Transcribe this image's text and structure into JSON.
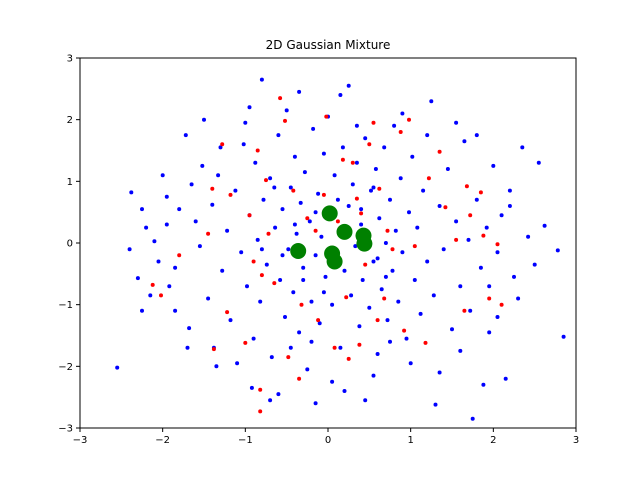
{
  "chart_data": {
    "type": "scatter",
    "title": "2D Gaussian Mixture",
    "xlabel": "",
    "ylabel": "",
    "xlim": [
      -3,
      3
    ],
    "ylim": [
      -3,
      3
    ],
    "xticks": [
      -3,
      -2,
      -1,
      0,
      1,
      2,
      3
    ],
    "yticks": [
      -3,
      -2,
      -1,
      0,
      1,
      2,
      3
    ],
    "grid": false,
    "legend": "none",
    "series": [
      {
        "color": "#0000ff",
        "marker_size": "small",
        "points": [
          [
            -2.55,
            -2.02
          ],
          [
            -2.38,
            0.82
          ],
          [
            -2.3,
            -0.57
          ],
          [
            -2.25,
            -1.1
          ],
          [
            -2.2,
            0.25
          ],
          [
            -2.1,
            0.03
          ],
          [
            -2.05,
            -0.3
          ],
          [
            -1.95,
            0.75
          ],
          [
            -1.92,
            -0.7
          ],
          [
            -1.85,
            -1.1
          ],
          [
            -1.8,
            0.55
          ],
          [
            -1.72,
            1.75
          ],
          [
            -1.68,
            -1.38
          ],
          [
            -1.6,
            0.35
          ],
          [
            -1.55,
            -0.05
          ],
          [
            -1.52,
            1.25
          ],
          [
            -1.45,
            -0.9
          ],
          [
            -1.4,
            0.62
          ],
          [
            -1.38,
            -1.7
          ],
          [
            -1.33,
            1.1
          ],
          [
            -1.28,
            -0.45
          ],
          [
            -1.22,
            0.2
          ],
          [
            -1.18,
            -1.25
          ],
          [
            -1.12,
            0.85
          ],
          [
            -1.05,
            -0.15
          ],
          [
            -1.02,
            1.6
          ],
          [
            -0.98,
            -0.7
          ],
          [
            -0.95,
            0.45
          ],
          [
            -0.9,
            -1.55
          ],
          [
            -0.88,
            1.3
          ],
          [
            -0.85,
            0.05
          ],
          [
            -0.82,
            -0.95
          ],
          [
            -0.8,
            2.65
          ],
          [
            -0.78,
            0.7
          ],
          [
            -0.74,
            -0.35
          ],
          [
            -0.7,
            1.05
          ],
          [
            -0.68,
            -1.85
          ],
          [
            -0.64,
            0.25
          ],
          [
            -0.6,
            1.75
          ],
          [
            -0.58,
            -0.6
          ],
          [
            -0.55,
            0.55
          ],
          [
            -0.52,
            -1.2
          ],
          [
            -0.5,
            2.15
          ],
          [
            -0.48,
            -0.1
          ],
          [
            -0.45,
            0.9
          ],
          [
            -0.42,
            -0.8
          ],
          [
            -0.4,
            1.4
          ],
          [
            -0.38,
            0.15
          ],
          [
            -0.35,
            -1.45
          ],
          [
            -0.33,
            0.65
          ],
          [
            -0.3,
            -0.4
          ],
          [
            -0.28,
            1.15
          ],
          [
            -0.25,
            -2.05
          ],
          [
            -0.22,
            0.35
          ],
          [
            -0.2,
            -0.95
          ],
          [
            -0.18,
            1.85
          ],
          [
            -0.15,
            -0.2
          ],
          [
            -0.12,
            0.8
          ],
          [
            -0.1,
            -1.3
          ],
          [
            -0.08,
            0.1
          ],
          [
            -0.05,
            1.45
          ],
          [
            -0.03,
            -0.55
          ],
          [
            0.0,
            2.05
          ],
          [
            0.02,
            0.45
          ],
          [
            0.05,
            -1.0
          ],
          [
            0.08,
            1.1
          ],
          [
            0.1,
            -0.15
          ],
          [
            0.12,
            0.7
          ],
          [
            0.15,
            -1.7
          ],
          [
            0.18,
            1.55
          ],
          [
            0.2,
            -0.45
          ],
          [
            0.22,
            0.25
          ],
          [
            0.25,
            2.55
          ],
          [
            0.28,
            -0.85
          ],
          [
            0.3,
            0.95
          ],
          [
            0.33,
            -0.05
          ],
          [
            0.35,
            1.3
          ],
          [
            0.38,
            -1.35
          ],
          [
            0.4,
            0.55
          ],
          [
            0.42,
            -0.6
          ],
          [
            0.45,
            1.7
          ],
          [
            0.48,
            0.15
          ],
          [
            0.5,
            -1.05
          ],
          [
            0.52,
            0.85
          ],
          [
            0.55,
            -0.3
          ],
          [
            0.58,
            1.2
          ],
          [
            0.6,
            -1.8
          ],
          [
            0.62,
            0.4
          ],
          [
            0.65,
            -0.75
          ],
          [
            0.68,
            1.55
          ],
          [
            0.7,
            0.0
          ],
          [
            0.72,
            -1.25
          ],
          [
            0.75,
            0.7
          ],
          [
            0.78,
            -0.45
          ],
          [
            0.8,
            1.9
          ],
          [
            0.82,
            0.2
          ],
          [
            0.85,
            -0.95
          ],
          [
            0.88,
            1.05
          ],
          [
            0.9,
            -0.15
          ],
          [
            0.95,
            -1.55
          ],
          [
            0.98,
            0.5
          ],
          [
            1.02,
            1.4
          ],
          [
            1.05,
            -0.6
          ],
          [
            1.08,
            0.25
          ],
          [
            1.12,
            -1.15
          ],
          [
            1.15,
            0.85
          ],
          [
            1.2,
            -0.3
          ],
          [
            1.25,
            2.3
          ],
          [
            1.28,
            -0.85
          ],
          [
            1.3,
            -2.62
          ],
          [
            1.35,
            0.6
          ],
          [
            1.4,
            -0.1
          ],
          [
            1.45,
            1.2
          ],
          [
            1.5,
            -1.4
          ],
          [
            1.55,
            0.35
          ],
          [
            1.6,
            -0.7
          ],
          [
            1.65,
            1.65
          ],
          [
            1.7,
            0.05
          ],
          [
            1.72,
            -1.1
          ],
          [
            1.75,
            -2.85
          ],
          [
            1.8,
            0.7
          ],
          [
            1.85,
            -0.4
          ],
          [
            1.88,
            -2.3
          ],
          [
            1.92,
            0.25
          ],
          [
            1.95,
            -1.45
          ],
          [
            2.0,
            1.25
          ],
          [
            2.05,
            -0.15
          ],
          [
            2.1,
            0.45
          ],
          [
            2.15,
            -2.2
          ],
          [
            2.2,
            0.85
          ],
          [
            2.25,
            -0.55
          ],
          [
            2.3,
            -0.9
          ],
          [
            2.35,
            1.55
          ],
          [
            2.42,
            0.1
          ],
          [
            2.5,
            -0.35
          ],
          [
            2.55,
            1.3
          ],
          [
            2.62,
            0.28
          ],
          [
            2.78,
            -0.12
          ],
          [
            2.85,
            -1.52
          ],
          [
            -0.92,
            -2.35
          ],
          [
            -0.6,
            -2.45
          ],
          [
            -0.15,
            -2.6
          ],
          [
            0.2,
            -2.4
          ],
          [
            0.55,
            -2.15
          ],
          [
            -1.1,
            -1.95
          ],
          [
            1.0,
            -1.95
          ],
          [
            -1.7,
            -1.7
          ],
          [
            1.6,
            -1.75
          ],
          [
            -2.0,
            1.1
          ],
          [
            -1.3,
            1.55
          ],
          [
            -0.35,
            2.45
          ],
          [
            0.9,
            2.1
          ],
          [
            1.55,
            1.95
          ],
          [
            -2.4,
            -0.1
          ],
          [
            -2.15,
            -0.85
          ],
          [
            -1.95,
            0.3
          ],
          [
            2.2,
            0.6
          ],
          [
            -1.5,
            2.0
          ],
          [
            0.15,
            2.4
          ],
          [
            -0.7,
            -2.55
          ],
          [
            0.45,
            -2.55
          ],
          [
            1.35,
            -2.1
          ],
          [
            -1.35,
            -2.0
          ],
          [
            -0.95,
            2.2
          ],
          [
            1.8,
            1.75
          ],
          [
            -0.2,
            -1.6
          ],
          [
            0.35,
            1.9
          ],
          [
            -1.65,
            0.95
          ],
          [
            2.05,
            -1.2
          ],
          [
            -2.25,
            0.55
          ],
          [
            1.2,
            1.75
          ],
          [
            -0.45,
            -1.7
          ],
          [
            0.75,
            -1.6
          ],
          [
            -1.0,
            1.95
          ],
          [
            0.05,
            -2.25
          ],
          [
            1.95,
            -0.7
          ],
          [
            -1.85,
            -0.4
          ],
          [
            -0.65,
            0.9
          ],
          [
            0.6,
            -0.25
          ],
          [
            -0.3,
            -0.6
          ],
          [
            0.25,
            0.6
          ],
          [
            -0.55,
            -0.2
          ],
          [
            0.4,
            0.3
          ],
          [
            -0.15,
            0.5
          ],
          [
            0.7,
            -0.55
          ],
          [
            -0.8,
            -0.1
          ],
          [
            0.1,
            -0.35
          ],
          [
            -0.4,
            0.3
          ],
          [
            0.55,
            0.9
          ],
          [
            -0.05,
            -0.8
          ]
        ]
      },
      {
        "color": "#ff0000",
        "marker_size": "small",
        "points": [
          [
            -2.02,
            -0.85
          ],
          [
            -2.12,
            -0.68
          ],
          [
            -1.8,
            -0.2
          ],
          [
            -1.45,
            0.15
          ],
          [
            -1.4,
            0.88
          ],
          [
            -1.38,
            -1.72
          ],
          [
            -1.28,
            1.6
          ],
          [
            -1.22,
            -1.12
          ],
          [
            -1.18,
            0.78
          ],
          [
            -1.0,
            -1.62
          ],
          [
            -0.95,
            0.45
          ],
          [
            -0.85,
            1.5
          ],
          [
            -0.82,
            -2.38
          ],
          [
            -0.82,
            -2.73
          ],
          [
            -0.8,
            -0.52
          ],
          [
            -0.75,
            1.02
          ],
          [
            -0.72,
            0.15
          ],
          [
            -0.65,
            -0.65
          ],
          [
            -0.58,
            2.35
          ],
          [
            -0.52,
            1.98
          ],
          [
            -0.48,
            -1.85
          ],
          [
            -0.42,
            0.85
          ],
          [
            -0.35,
            -2.2
          ],
          [
            -0.32,
            -1.0
          ],
          [
            -0.25,
            0.4
          ],
          [
            -0.12,
            -1.25
          ],
          [
            -0.05,
            0.78
          ],
          [
            -0.02,
            2.05
          ],
          [
            0.08,
            -1.7
          ],
          [
            0.12,
            0.35
          ],
          [
            0.18,
            1.35
          ],
          [
            0.22,
            -0.88
          ],
          [
            0.25,
            -1.88
          ],
          [
            0.3,
            1.3
          ],
          [
            0.35,
            0.72
          ],
          [
            0.38,
            -1.65
          ],
          [
            0.45,
            -0.35
          ],
          [
            0.5,
            1.6
          ],
          [
            0.55,
            1.95
          ],
          [
            0.6,
            -1.25
          ],
          [
            0.62,
            0.88
          ],
          [
            0.68,
            -0.9
          ],
          [
            0.72,
            0.2
          ],
          [
            0.78,
            -0.1
          ],
          [
            0.88,
            1.8
          ],
          [
            0.92,
            -1.42
          ],
          [
            0.98,
            2.0
          ],
          [
            1.05,
            -0.05
          ],
          [
            1.18,
            -1.62
          ],
          [
            1.22,
            1.05
          ],
          [
            1.35,
            1.48
          ],
          [
            1.42,
            0.58
          ],
          [
            1.55,
            0.05
          ],
          [
            1.65,
            -1.1
          ],
          [
            1.68,
            0.92
          ],
          [
            1.72,
            0.45
          ],
          [
            1.85,
            0.82
          ],
          [
            1.88,
            0.12
          ],
          [
            1.95,
            -0.9
          ],
          [
            2.05,
            -0.02
          ],
          [
            2.1,
            -1.0
          ],
          [
            -0.9,
            -0.3
          ],
          [
            0.4,
            0.48
          ],
          [
            -0.15,
            0.2
          ]
        ]
      },
      {
        "color": "#008000",
        "marker_size": "large",
        "points": [
          [
            0.02,
            0.48
          ],
          [
            0.2,
            0.18
          ],
          [
            0.43,
            0.12
          ],
          [
            0.44,
            -0.01
          ],
          [
            0.05,
            -0.17
          ],
          [
            0.08,
            -0.3
          ],
          [
            -0.36,
            -0.13
          ]
        ]
      }
    ]
  }
}
